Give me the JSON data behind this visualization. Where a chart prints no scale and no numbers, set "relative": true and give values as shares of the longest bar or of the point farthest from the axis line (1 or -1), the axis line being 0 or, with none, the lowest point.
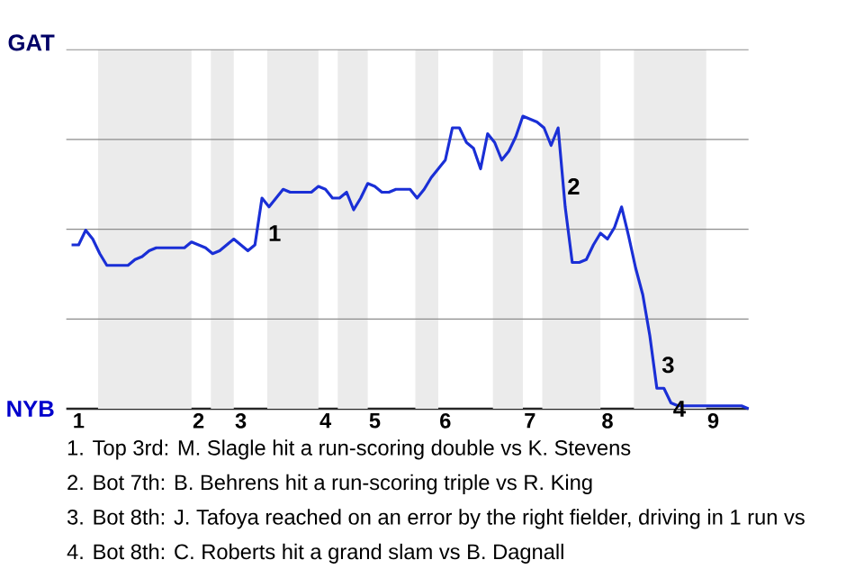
{
  "chart_data": {
    "type": "line",
    "relative": true,
    "categories": [
      null,
      "1",
      null,
      null,
      null,
      null,
      null,
      null,
      null,
      null,
      null,
      null,
      null,
      null,
      null,
      null,
      null,
      null,
      "2",
      null,
      null,
      null,
      null,
      null,
      "3",
      null,
      null,
      null,
      null,
      null,
      null,
      null,
      null,
      null,
      null,
      null,
      "4",
      null,
      null,
      null,
      null,
      null,
      null,
      "5",
      null,
      null,
      null,
      null,
      null,
      null,
      null,
      null,
      null,
      "6",
      null,
      null,
      null,
      null,
      null,
      null,
      null,
      null,
      null,
      null,
      null,
      "7",
      null,
      null,
      null,
      null,
      null,
      null,
      null,
      null,
      null,
      null,
      "8",
      null,
      null,
      null,
      null,
      null,
      null,
      null,
      null,
      null,
      null,
      null,
      null,
      null,
      null,
      "9",
      null,
      null,
      null,
      null,
      null
    ],
    "series": [
      {
        "color": "#1a2fd6",
        "values": [
          0.56,
          0.56,
          0.61,
          0.58,
          0.53,
          0.49,
          0.49,
          0.49,
          0.49,
          0.51,
          0.52,
          0.54,
          0.55,
          0.55,
          0.55,
          0.55,
          0.55,
          0.57,
          0.56,
          0.55,
          0.53,
          0.54,
          0.56,
          0.58,
          0.56,
          0.54,
          0.56,
          0.72,
          0.69,
          0.72,
          0.75,
          0.74,
          0.74,
          0.74,
          0.74,
          0.76,
          0.75,
          0.72,
          0.72,
          0.74,
          0.68,
          0.72,
          0.77,
          0.76,
          0.74,
          0.74,
          0.75,
          0.75,
          0.75,
          0.72,
          0.75,
          0.79,
          0.82,
          0.85,
          0.96,
          0.96,
          0.91,
          0.89,
          0.82,
          0.94,
          0.91,
          0.85,
          0.88,
          0.93,
          1,
          0.99,
          0.98,
          0.96,
          0.9,
          0.96,
          0.69,
          0.5,
          0.5,
          0.51,
          0.56,
          0.6,
          0.58,
          0.62,
          0.69,
          0.59,
          0.48,
          0.39,
          0.25,
          0.07,
          0.07,
          0.02,
          0.01,
          0.01,
          0.01,
          0.01,
          0.01,
          0.01,
          0.01,
          0.01,
          0.01,
          0.01,
          0
        ]
      }
    ],
    "grid": "y",
    "annotations": [
      "GAT",
      "NYB",
      "1",
      "2",
      "3",
      "4",
      "1. Top 3rd: M. Slagle hit a run-scoring double vs K. Stevens",
      "2. Bot 7th: B. Behrens hit a run-scoring triple vs R. King",
      "3. Bot 8th: J. Tafoya reached on an error by the right fielder, driving in 1 run vs",
      "4. Bot 8th: C. Roberts hit a grand slam vs B. Dagnall"
    ]
  }
}
